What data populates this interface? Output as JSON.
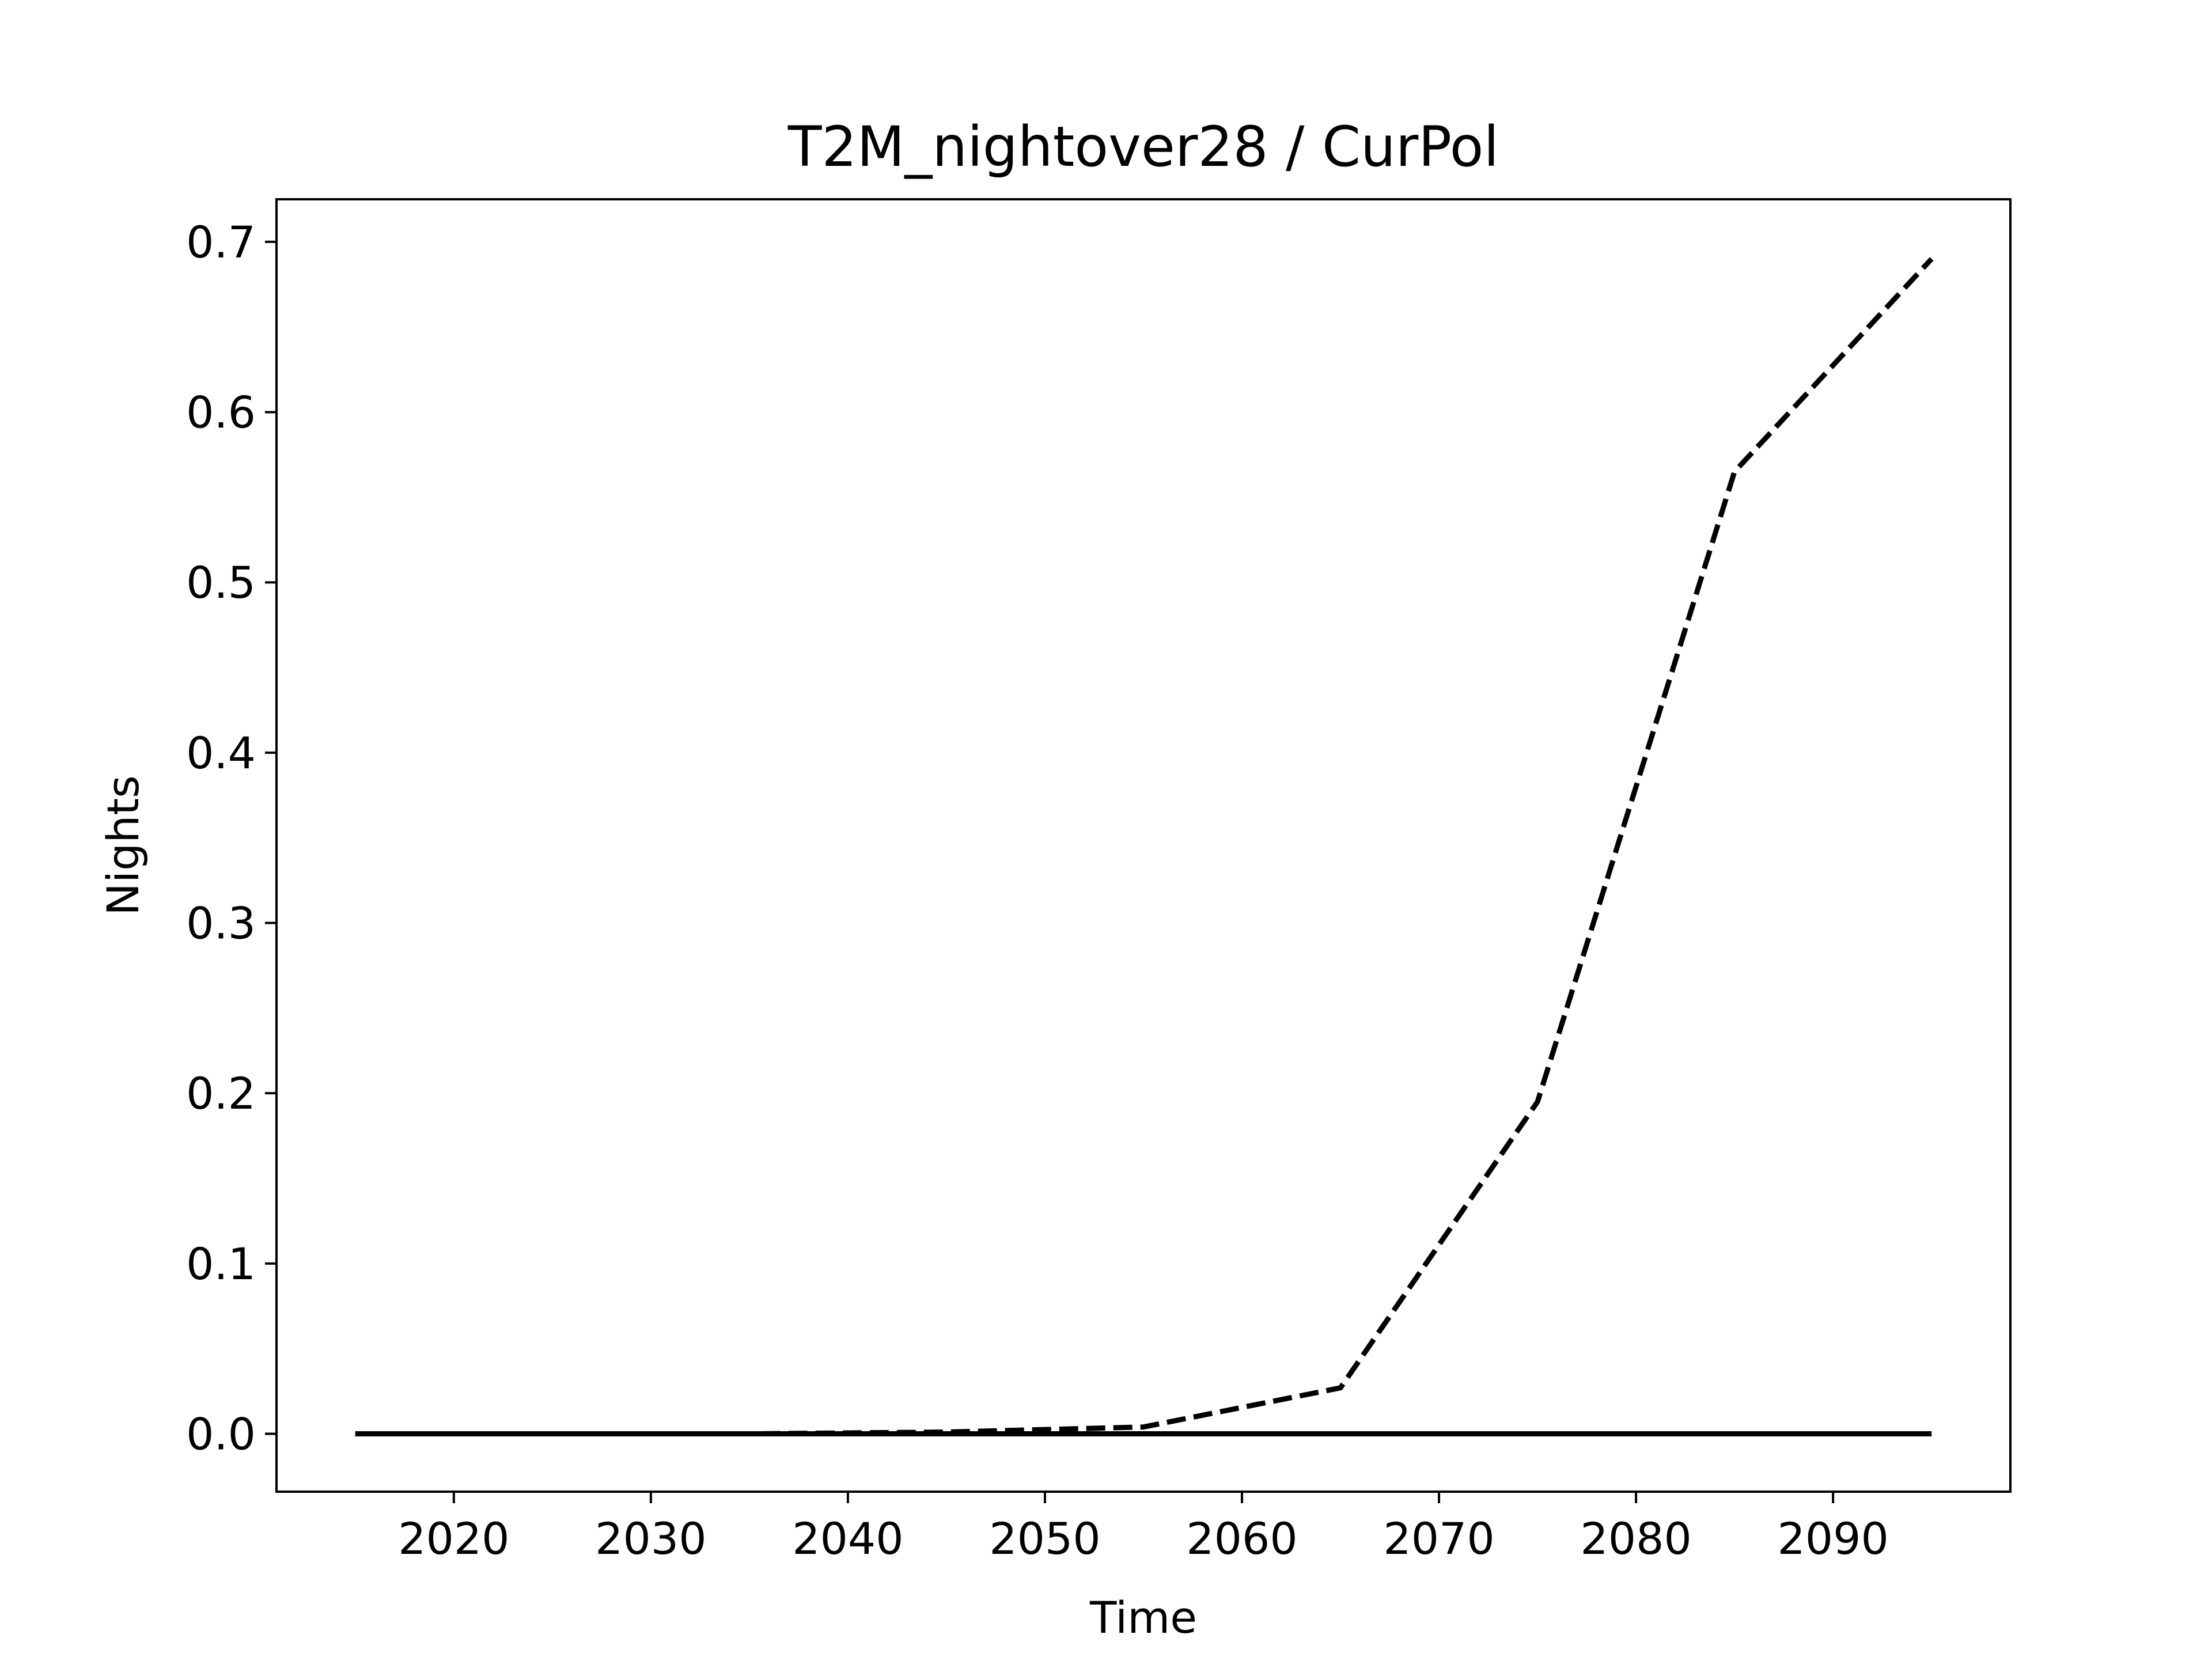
{
  "chart_data": {
    "type": "line",
    "title": "T2M_nightover28 / CurPol",
    "xlabel": "Time",
    "ylabel": "Nights",
    "xlim": [
      2011,
      2099
    ],
    "ylim": [
      -0.034,
      0.725
    ],
    "xticks": [
      2020,
      2030,
      2040,
      2050,
      2060,
      2070,
      2080,
      2090
    ],
    "xtick_labels": [
      "2020",
      "2030",
      "2040",
      "2050",
      "2060",
      "2070",
      "2080",
      "2090"
    ],
    "yticks": [
      0.0,
      0.1,
      0.2,
      0.3,
      0.4,
      0.5,
      0.6,
      0.7
    ],
    "ytick_labels": [
      "0.0",
      "0.1",
      "0.2",
      "0.3",
      "0.4",
      "0.5",
      "0.6",
      "0.7"
    ],
    "grid": false,
    "legend": false,
    "series": [
      {
        "style": "dashed",
        "color": "#000000",
        "x": [
          2015,
          2025,
          2035,
          2045,
          2055,
          2065,
          2075,
          2085,
          2095
        ],
        "values": [
          0.0,
          0.0,
          0.0,
          0.001,
          0.004,
          0.027,
          0.195,
          0.565,
          0.69
        ]
      },
      {
        "style": "solid",
        "color": "#000000",
        "x": [
          2015,
          2025,
          2035,
          2045,
          2055,
          2065,
          2075,
          2085,
          2095
        ],
        "values": [
          0.0,
          0.0,
          0.0,
          0.0,
          0.0,
          0.0,
          0.0,
          0.0,
          0.0
        ]
      }
    ]
  }
}
